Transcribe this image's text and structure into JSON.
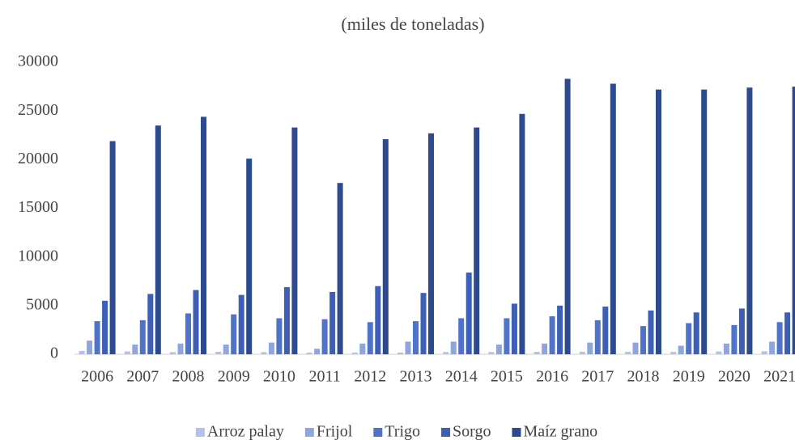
{
  "chart_data": {
    "type": "bar",
    "title": "(miles de toneladas)",
    "categories": [
      "2006",
      "2007",
      "2008",
      "2009",
      "2010",
      "2011",
      "2012",
      "2013",
      "2014",
      "2015",
      "2016",
      "2017",
      "2018",
      "2019",
      "2020",
      "2021"
    ],
    "series": [
      {
        "name": "Arroz palay",
        "color": "#b4c1e8",
        "values": [
          340,
          290,
          220,
          260,
          220,
          170,
          180,
          180,
          230,
          230,
          250,
          260,
          250,
          240,
          290,
          300
        ]
      },
      {
        "name": "Frijol",
        "color": "#8fa6dc",
        "values": [
          1400,
          1000,
          1100,
          1000,
          1200,
          570,
          1100,
          1300,
          1300,
          1000,
          1100,
          1200,
          1200,
          880,
          1100,
          1300
        ]
      },
      {
        "name": "Trigo",
        "color": "#4f73c9",
        "values": [
          3400,
          3500,
          4200,
          4100,
          3700,
          3600,
          3300,
          3400,
          3700,
          3700,
          3900,
          3500,
          2900,
          3200,
          3000,
          3300
        ]
      },
      {
        "name": "Sorgo",
        "color": "#3d5fb5",
        "values": [
          5500,
          6200,
          6600,
          6100,
          6900,
          6400,
          7000,
          6300,
          8400,
          5200,
          5000,
          4900,
          4500,
          4300,
          4700,
          4300
        ]
      },
      {
        "name": "Maíz grano",
        "color": "#2e4a8e",
        "values": [
          21900,
          23500,
          24400,
          20100,
          23300,
          17600,
          22100,
          22700,
          23300,
          24700,
          28300,
          27800,
          27200,
          27200,
          27400,
          27500
        ]
      }
    ],
    "ylim": [
      0,
      30000
    ],
    "yticks": [
      0,
      5000,
      10000,
      15000,
      20000,
      25000,
      30000
    ],
    "grid": false,
    "legend": "bottom"
  }
}
